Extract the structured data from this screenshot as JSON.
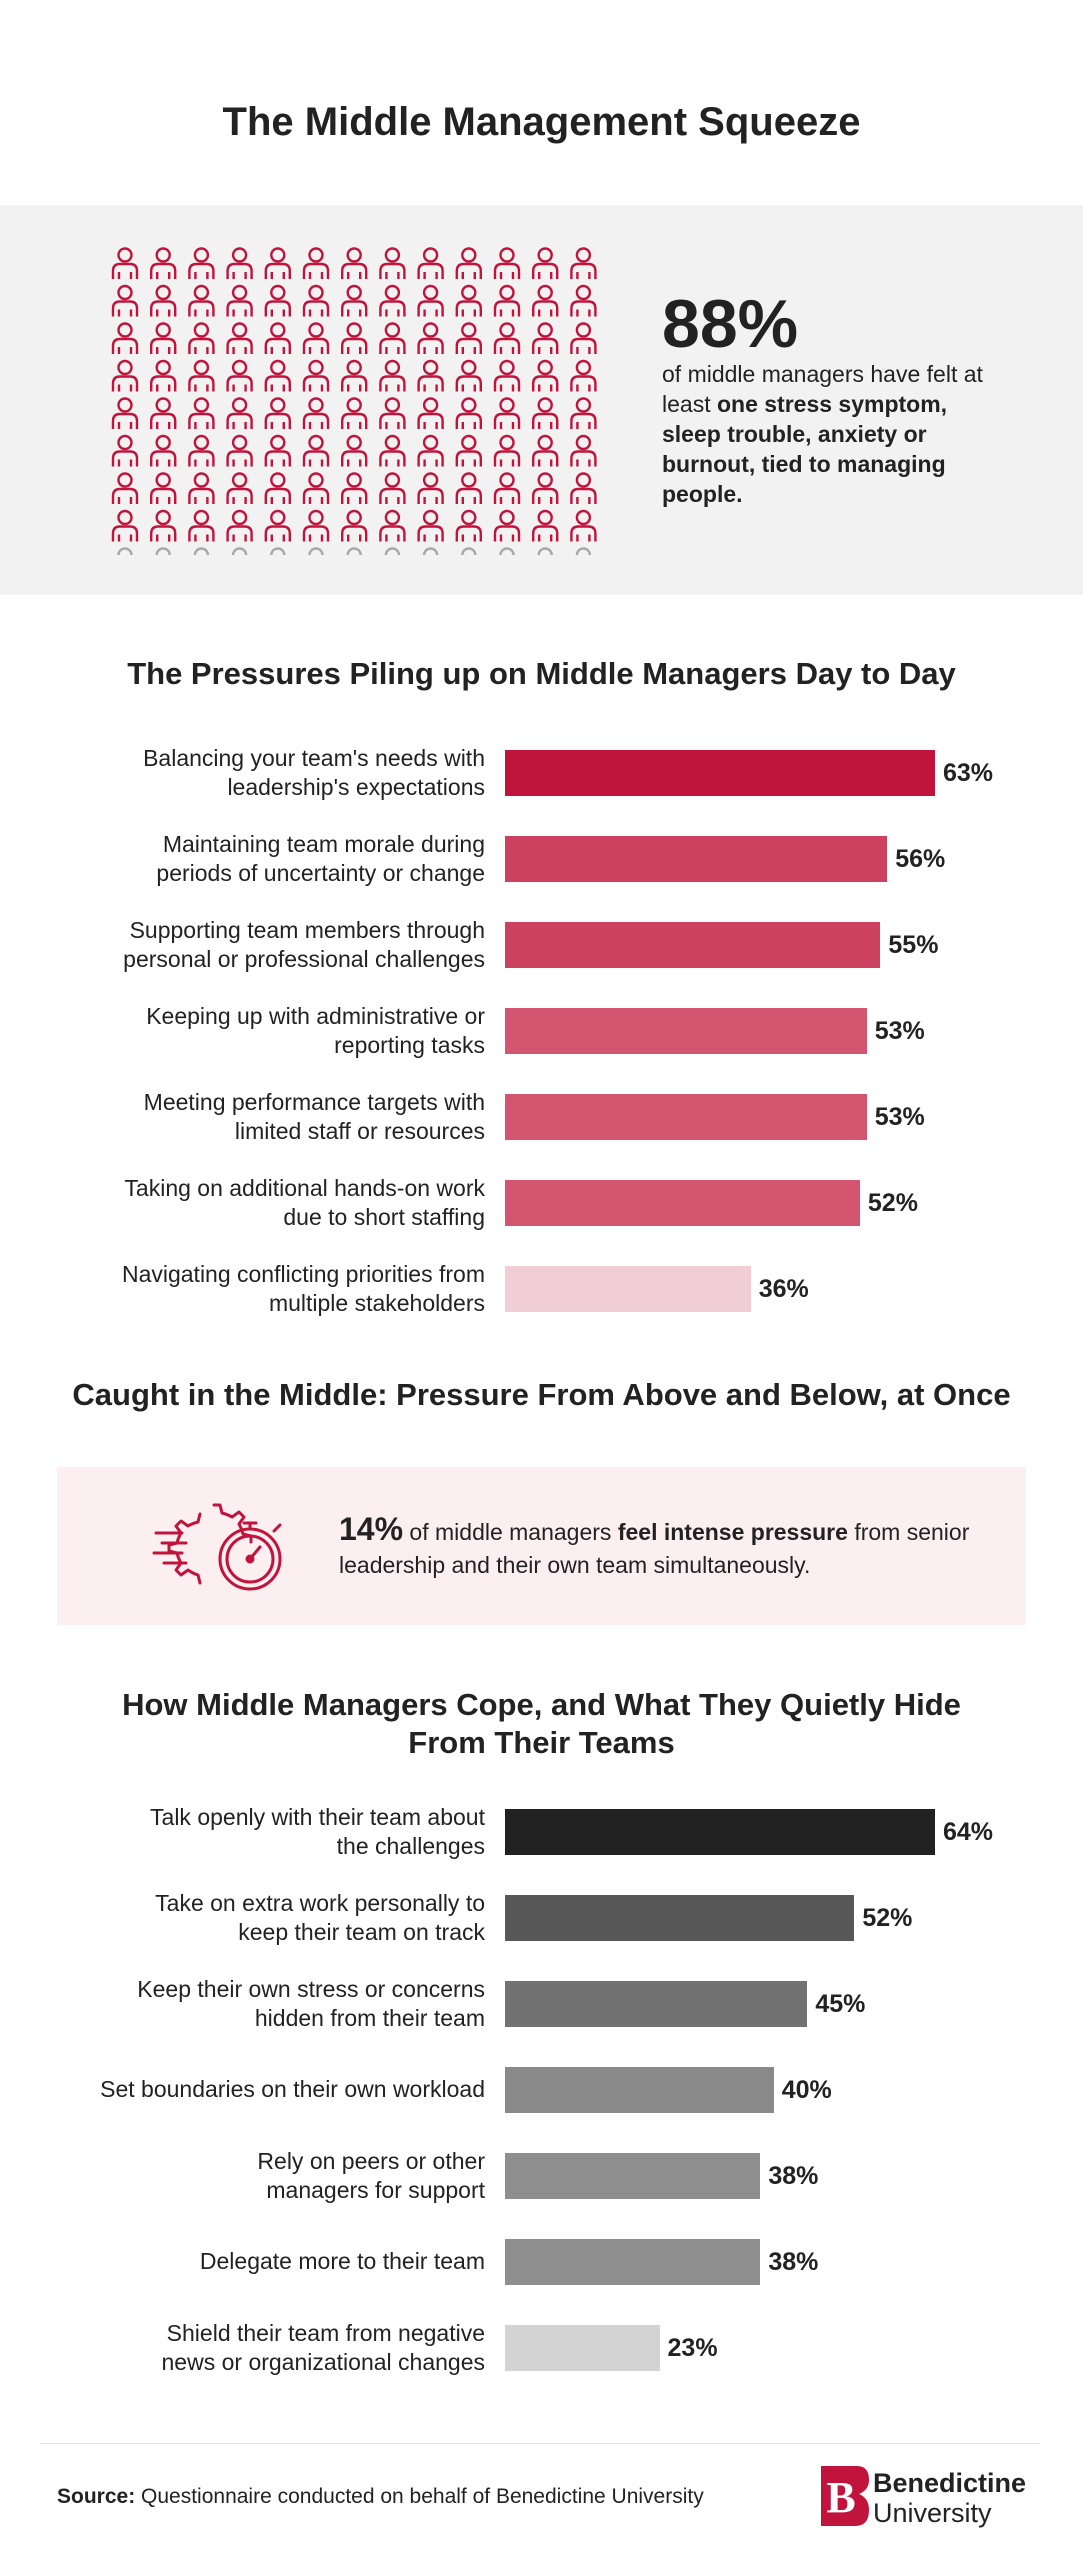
{
  "page_title": "The Middle Management Squeeze",
  "hero": {
    "percent": "88%",
    "desc_plain": "of middle managers have felt at least ",
    "desc_bold": "one stress symptom, sleep trouble, anxiety or burnout, tied to managing people.",
    "icon_total": 118,
    "icon_highlighted": 104,
    "icon_columns": 13,
    "highlight_color": "#c0143c",
    "muted_color": "#a8a8a8"
  },
  "chart_data": [
    {
      "type": "bar",
      "title": "The Pressures Piling up on Middle Managers Day to Day",
      "categories": [
        "Balancing your team's needs with leadership's expectations",
        "Maintaining team morale during periods of uncertainty or change",
        "Supporting team members through personal or professional challenges",
        "Keeping up with administrative or reporting tasks",
        "Meeting performance targets with limited staff or resources",
        "Taking on additional hands-on work due to short staffing",
        "Navigating conflicting priorities from multiple stakeholders"
      ],
      "label_lines": [
        [
          "Balancing your team's needs with",
          "leadership's expectations"
        ],
        [
          "Maintaining team morale during",
          "periods of uncertainty or change"
        ],
        [
          "Supporting team members through",
          "personal or professional challenges"
        ],
        [
          "Keeping up with administrative or",
          "reporting tasks"
        ],
        [
          "Meeting performance targets with",
          "limited staff or resources"
        ],
        [
          "Taking on additional hands-on work",
          "due to short staffing"
        ],
        [
          "Navigating conflicting priorities from",
          "multiple stakeholders"
        ]
      ],
      "values": [
        63,
        56,
        55,
        53,
        53,
        52,
        36
      ],
      "value_labels": [
        "63%",
        "56%",
        "55%",
        "53%",
        "53%",
        "52%",
        "36%"
      ],
      "colors": [
        "#c0143c",
        "#cc4160",
        "#cc4160",
        "#d3556f",
        "#d3556f",
        "#d3556f",
        "#f1cdd5"
      ],
      "xlim": [
        0,
        63
      ]
    },
    {
      "type": "bar",
      "title": "How Middle Managers Cope, and What They Quietly Hide From Their Teams",
      "title_lines": [
        "How Middle Managers Cope, and What They Quietly Hide",
        "From Their Teams"
      ],
      "categories": [
        "Talk openly with their team about the challenges",
        "Take on extra work personally to keep their team on track",
        "Keep their own stress or concerns hidden from their team",
        "Set boundaries on their own workload",
        "Rely on peers or other managers for support",
        "Delegate more to their team",
        "Shield their team from negative news or organizational changes"
      ],
      "label_lines": [
        [
          "Talk openly with their team about",
          "the challenges"
        ],
        [
          "Take on extra work personally to",
          "keep their team on track"
        ],
        [
          "Keep their own stress or concerns",
          "hidden from their team"
        ],
        [
          "Set boundaries on their own workload"
        ],
        [
          "Rely on peers or other",
          "managers for support"
        ],
        [
          "Delegate more to their team"
        ],
        [
          "Shield their team from negative",
          "news or organizational changes"
        ]
      ],
      "values": [
        64,
        52,
        45,
        40,
        38,
        38,
        23
      ],
      "value_labels": [
        "64%",
        "52%",
        "45%",
        "40%",
        "38%",
        "38%",
        "23%"
      ],
      "colors": [
        "#222222",
        "#585858",
        "#727272",
        "#898989",
        "#8e8e8e",
        "#8e8e8e",
        "#d3d3d3"
      ],
      "xlim": [
        0,
        64
      ]
    }
  ],
  "callout": {
    "title": "Caught in the Middle: Pressure From Above and Below, at Once",
    "percent": "14%",
    "text_1": " of middle managers ",
    "text_bold": "feel intense pressure",
    "text_2": " from senior leadership and their own team simultaneously.",
    "icon": "gear-stopwatch-icon",
    "accent_color": "#c0143c"
  },
  "footer": {
    "source_label": "Source:",
    "source_text": " Questionnaire conducted on behalf of Benedictine University",
    "logo_line_1": "Benedictine",
    "logo_line_2": "University",
    "logo_letter": "B",
    "logo_color": "#c0143c"
  }
}
